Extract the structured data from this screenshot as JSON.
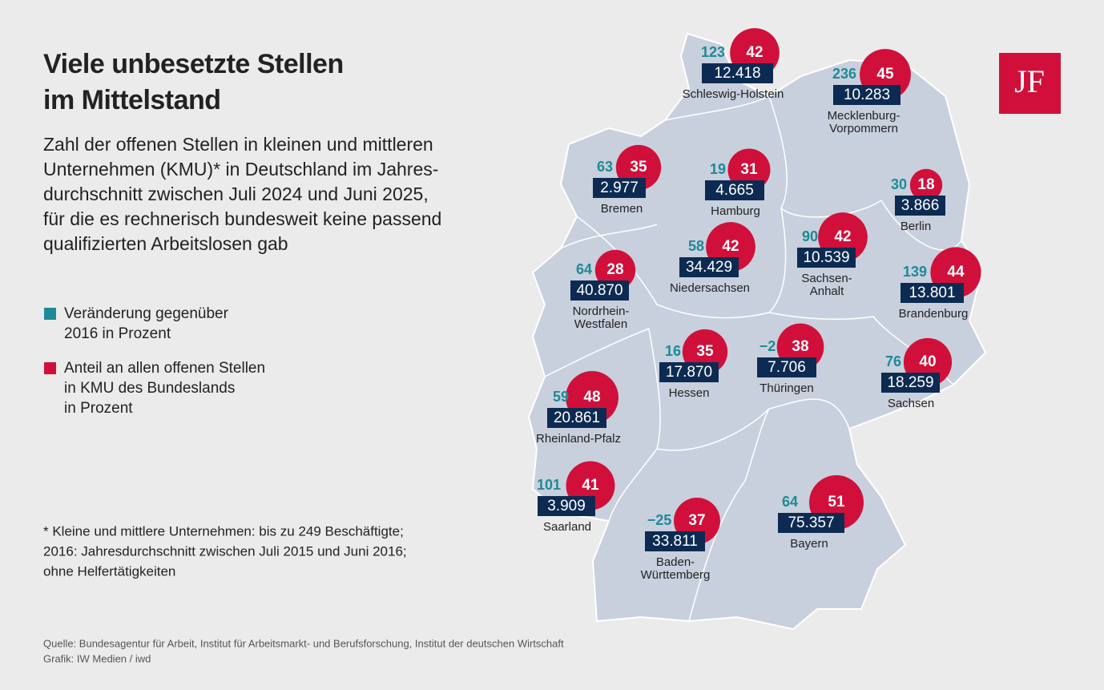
{
  "header": {
    "title_lines": [
      "Viele unbesetzte Stellen",
      "im Mittelstand"
    ],
    "subtitle_lines": [
      "Zahl der offenen Stellen in kleinen und mittleren",
      "Unternehmen (KMU)* in Deutschland im Jahres-",
      "durchschnitt zwischen Juli 2024 und Juni 2025,",
      "für die es rechnerisch bundesweit keine passend",
      "qualifizierten Arbeitslosen gab"
    ]
  },
  "legend": [
    {
      "color": "#1e8a96",
      "lines": [
        "Veränderung gegenüber",
        "2016 in Prozent"
      ]
    },
    {
      "color": "#d0103a",
      "lines": [
        "Anteil an allen offenen Stellen",
        "in KMU des Bundeslands",
        "in Prozent"
      ]
    }
  ],
  "states": [
    {
      "name": [
        "Schleswig-Holstein"
      ],
      "change": "123",
      "share": 42,
      "count": "12.418"
    },
    {
      "name": [
        "Mecklenburg-",
        "Vorpommern"
      ],
      "change": "236",
      "share": 45,
      "count": "10.283"
    },
    {
      "name": [
        "Bremen"
      ],
      "change": "63",
      "share": 35,
      "count": "2.977"
    },
    {
      "name": [
        "Hamburg"
      ],
      "change": "19",
      "share": 31,
      "count": "4.665"
    },
    {
      "name": [
        "Berlin"
      ],
      "change": "30",
      "share": 18,
      "count": "3.866"
    },
    {
      "name": [
        "Niedersachsen"
      ],
      "change": "58",
      "share": 42,
      "count": "34.429"
    },
    {
      "name": [
        "Sachsen-",
        "Anhalt"
      ],
      "change": "90",
      "share": 42,
      "count": "10.539"
    },
    {
      "name": [
        "Brandenburg"
      ],
      "change": "139",
      "share": 44,
      "count": "13.801"
    },
    {
      "name": [
        "Nordrhein-",
        "Westfalen"
      ],
      "change": "64",
      "share": 28,
      "count": "40.870"
    },
    {
      "name": [
        "Hessen"
      ],
      "change": "16",
      "share": 35,
      "count": "17.870"
    },
    {
      "name": [
        "Thüringen"
      ],
      "change": "−2",
      "share": 38,
      "count": "7.706"
    },
    {
      "name": [
        "Sachsen"
      ],
      "change": "76",
      "share": 40,
      "count": "18.259"
    },
    {
      "name": [
        "Rheinland-Pfalz"
      ],
      "change": "59",
      "share": 48,
      "count": "20.861"
    },
    {
      "name": [
        "Saarland"
      ],
      "change": "101",
      "share": 41,
      "count": "3.909"
    },
    {
      "name": [
        "Baden-",
        "Württemberg"
      ],
      "change": "−25",
      "share": 37,
      "count": "33.811"
    },
    {
      "name": [
        "Bayern"
      ],
      "change": "64",
      "share": 51,
      "count": "75.357"
    }
  ],
  "footnote_lines": [
    "* Kleine und mittlere Unternehmen: bis zu 249 Beschäftigte;",
    "2016: Jahresdurchschnitt zwischen Juli 2015 und Juni 2016;",
    "ohne Helfertätigkeiten"
  ],
  "source_lines": [
    "Quelle: Bundesagentur für Arbeit, Institut für Arbeitsmarkt- und Berufsforschung, Institut der deutschen Wirtschaft",
    "Grafik: IW Medien / iwd"
  ],
  "logo": "JF"
}
